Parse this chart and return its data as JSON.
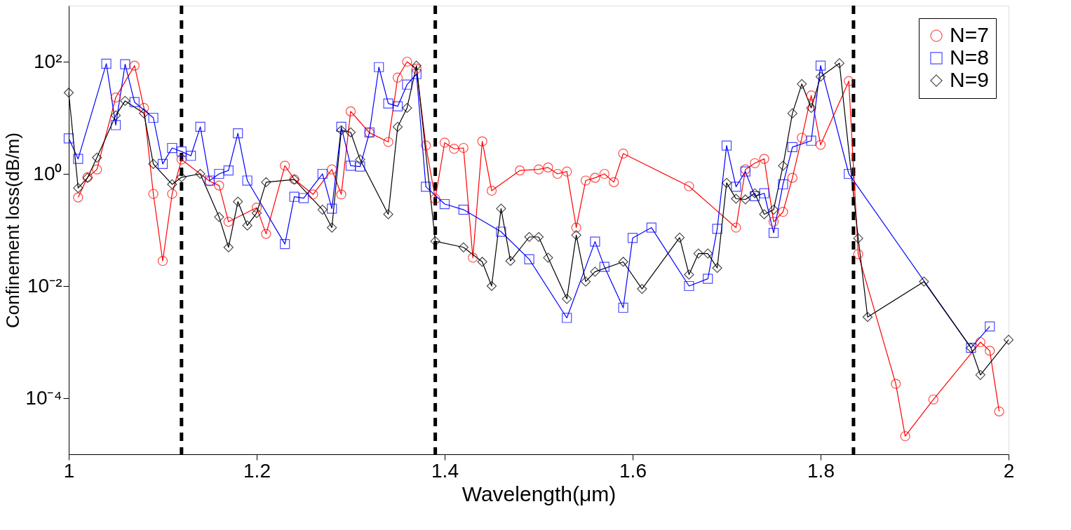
{
  "chart_data": {
    "type": "line",
    "xlabel": "Wavelength(μm)",
    "ylabel": "Confinement loss(dB/m)",
    "xlim": [
      1,
      2
    ],
    "xticks": [
      1,
      1.2,
      1.4,
      1.6,
      1.8,
      2
    ],
    "ylim": [
      1e-05,
      1000
    ],
    "log": "y",
    "yticks": [
      {
        "value": 0.0001,
        "label": "10⁻⁴"
      },
      {
        "value": 0.01,
        "label": "10⁻²"
      },
      {
        "value": 1,
        "label": "10⁰"
      },
      {
        "value": 100,
        "label": "10²"
      }
    ],
    "grid": false,
    "legend": "top right",
    "line_style": "solid",
    "ref_lines": [
      {
        "axis": "x",
        "value": 1.12,
        "color": "#000000",
        "line_style": "dashed"
      },
      {
        "axis": "x",
        "value": 1.39,
        "color": "#000000",
        "line_style": "dashed"
      },
      {
        "axis": "x",
        "value": 1.835,
        "color": "#000000",
        "line_style": "dashed"
      }
    ],
    "series": [
      {
        "name": "N=7",
        "color": "#ff0000",
        "marker": "circle",
        "x": [
          1.01,
          1.02,
          1.03,
          1.05,
          1.07,
          1.08,
          1.09,
          1.1,
          1.11,
          1.12,
          1.15,
          1.16,
          1.17,
          1.2,
          1.21,
          1.23,
          1.24,
          1.26,
          1.28,
          1.29,
          1.3,
          1.32,
          1.34,
          1.35,
          1.36,
          1.37,
          1.38,
          1.39,
          1.4,
          1.41,
          1.42,
          1.43,
          1.44,
          1.45,
          1.48,
          1.5,
          1.51,
          1.52,
          1.53,
          1.54,
          1.55,
          1.56,
          1.57,
          1.58,
          1.59,
          1.66,
          1.71,
          1.72,
          1.73,
          1.74,
          1.75,
          1.76,
          1.77,
          1.78,
          1.79,
          1.8,
          1.83,
          1.84,
          1.88,
          1.89,
          1.92,
          1.97,
          1.98,
          1.99
        ],
        "values": [
          0.38,
          0.87,
          1.2,
          23,
          85,
          15,
          0.44,
          0.028,
          0.44,
          1.8,
          0.74,
          0.62,
          0.14,
          0.25,
          0.085,
          1.4,
          0.8,
          0.43,
          1.2,
          0.43,
          13,
          5.4,
          3.7,
          52,
          100,
          75,
          3.2,
          0.36,
          3.6,
          2.8,
          2.9,
          0.032,
          3.8,
          0.5,
          1.15,
          1.2,
          1.3,
          1.0,
          1.1,
          0.11,
          0.76,
          0.85,
          1.0,
          0.71,
          2.3,
          0.6,
          0.11,
          1.2,
          1.55,
          1.85,
          0.14,
          0.21,
          0.85,
          4.4,
          25,
          3.3,
          45,
          0.037,
          0.00018,
          2.1e-05,
          9.5e-05,
          0.001,
          0.0007,
          5.8e-05
        ]
      },
      {
        "name": "N=8",
        "color": "#0000ff",
        "marker": "square",
        "x": [
          1.0,
          1.01,
          1.04,
          1.05,
          1.06,
          1.07,
          1.09,
          1.1,
          1.11,
          1.12,
          1.13,
          1.14,
          1.15,
          1.16,
          1.17,
          1.18,
          1.19,
          1.23,
          1.24,
          1.25,
          1.27,
          1.28,
          1.29,
          1.3,
          1.31,
          1.32,
          1.33,
          1.34,
          1.35,
          1.36,
          1.37,
          1.38,
          1.4,
          1.42,
          1.46,
          1.49,
          1.53,
          1.56,
          1.57,
          1.59,
          1.6,
          1.62,
          1.66,
          1.68,
          1.69,
          1.7,
          1.71,
          1.72,
          1.73,
          1.74,
          1.75,
          1.76,
          1.77,
          1.79,
          1.8,
          1.83,
          1.96,
          1.98
        ],
        "values": [
          4.3,
          1.85,
          92,
          7.4,
          90,
          19,
          10,
          1.5,
          2.9,
          2.5,
          2.1,
          6.9,
          0.76,
          1.0,
          1.15,
          5.3,
          0.76,
          0.056,
          0.39,
          0.37,
          1.0,
          0.24,
          6.9,
          1.4,
          1.35,
          5.5,
          80,
          18,
          16,
          39,
          60,
          0.59,
          0.29,
          0.23,
          0.093,
          0.03,
          0.0027,
          0.062,
          0.022,
          0.0041,
          0.072,
          0.11,
          0.01,
          0.0135,
          0.105,
          3.2,
          0.59,
          1.1,
          0.4,
          0.45,
          0.089,
          0.65,
          3.0,
          3.9,
          85,
          1.0,
          0.00079,
          0.0019
        ]
      },
      {
        "name": "N=9",
        "color": "#000000",
        "marker": "diamond",
        "x": [
          1.0,
          1.01,
          1.02,
          1.03,
          1.05,
          1.06,
          1.08,
          1.09,
          1.11,
          1.12,
          1.14,
          1.16,
          1.17,
          1.18,
          1.19,
          1.2,
          1.21,
          1.24,
          1.27,
          1.28,
          1.29,
          1.3,
          1.31,
          1.34,
          1.35,
          1.36,
          1.37,
          1.39,
          1.42,
          1.44,
          1.45,
          1.46,
          1.47,
          1.49,
          1.5,
          1.51,
          1.53,
          1.54,
          1.55,
          1.56,
          1.59,
          1.61,
          1.65,
          1.66,
          1.67,
          1.68,
          1.69,
          1.7,
          1.71,
          1.72,
          1.73,
          1.74,
          1.75,
          1.76,
          1.77,
          1.78,
          1.79,
          1.8,
          1.82,
          1.84,
          1.85,
          1.91,
          1.96,
          1.97,
          2.0
        ],
        "values": [
          28,
          0.56,
          0.85,
          1.95,
          11,
          20,
          12,
          1.5,
          0.65,
          0.87,
          1.0,
          0.17,
          0.049,
          0.32,
          0.12,
          0.2,
          0.71,
          0.79,
          0.23,
          0.11,
          6.0,
          5.5,
          1.8,
          0.19,
          6.9,
          15,
          85,
          0.063,
          0.049,
          0.027,
          0.01,
          0.24,
          0.028,
          0.075,
          0.075,
          0.032,
          0.0059,
          0.081,
          0.012,
          0.018,
          0.027,
          0.0089,
          0.073,
          0.016,
          0.038,
          0.038,
          0.021,
          0.69,
          0.36,
          0.35,
          0.45,
          0.19,
          0.23,
          1.4,
          12,
          40,
          15,
          54,
          94,
          0.071,
          0.0028,
          0.012,
          0.00079,
          0.00026,
          0.0011
        ]
      }
    ]
  }
}
